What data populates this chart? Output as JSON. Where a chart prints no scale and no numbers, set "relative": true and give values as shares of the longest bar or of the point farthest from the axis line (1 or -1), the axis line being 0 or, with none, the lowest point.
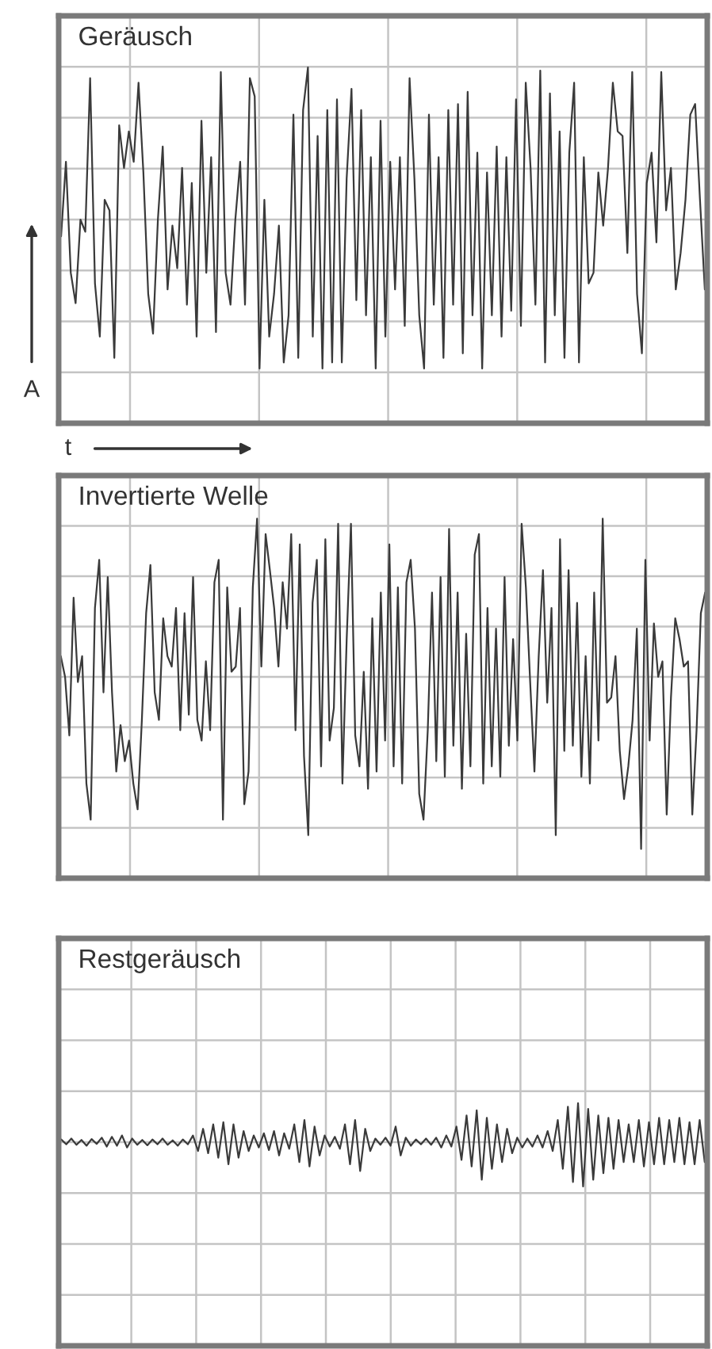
{
  "chart_data": [
    {
      "type": "line",
      "title": "Geräusch",
      "xlabel": "t",
      "ylabel": "A",
      "relative": true,
      "grid": true,
      "categories": [
        null,
        null,
        null,
        null,
        null,
        null,
        null,
        null,
        null,
        null,
        null,
        null,
        null,
        null,
        null,
        null,
        null,
        null,
        null,
        null,
        null,
        null,
        null,
        null,
        null,
        null,
        null,
        null,
        null,
        null,
        null,
        null,
        null,
        null,
        null,
        null,
        null,
        null,
        null,
        null,
        null,
        null,
        null,
        null,
        null,
        null,
        null,
        null,
        null,
        null,
        null,
        null,
        null,
        null,
        null,
        null,
        null,
        null,
        null,
        null,
        null,
        null,
        null,
        null,
        null,
        null,
        null,
        null,
        null,
        null,
        null,
        null,
        null,
        null,
        null,
        null,
        null,
        null,
        null,
        null,
        null,
        null,
        null,
        null,
        null,
        null,
        null,
        null,
        null,
        null,
        null,
        null,
        null,
        null,
        null,
        null,
        null,
        null,
        null,
        null,
        null,
        null,
        null,
        null,
        null,
        null,
        null,
        null,
        null,
        null,
        null,
        null,
        null,
        null,
        null,
        null,
        null,
        null,
        null,
        null,
        null,
        null,
        null,
        null,
        null,
        null,
        null,
        null,
        null,
        null,
        null,
        null,
        null,
        null
      ],
      "series": [
        {
          "color": "#3a3a3a",
          "values": [
            -0.11,
            0.38,
            -0.35,
            -0.55,
            0,
            -0.08,
            0.93,
            -0.42,
            -0.77,
            0.13,
            0.06,
            -0.91,
            0.62,
            0.34,
            0.58,
            0.38,
            0.9,
            0.31,
            -0.49,
            -0.75,
            0,
            0.48,
            -0.46,
            -0.04,
            -0.32,
            0.34,
            -0.56,
            0.24,
            -0.77,
            0.65,
            -0.35,
            0.41,
            -0.74,
            0.97,
            -0.35,
            -0.56,
            0,
            0.38,
            -0.56,
            0.93,
            0.81,
            -0.98,
            0.13,
            -0.77,
            -0.49,
            -0.04,
            -0.94,
            -0.63,
            0.69,
            -0.91,
            0.72,
            1.0,
            -0.77,
            0.55,
            -0.98,
            0.72,
            -0.94,
            0.79,
            -0.94,
            0.27,
            0.86,
            -0.53,
            0.72,
            -0.63,
            0.41,
            -0.98,
            0.65,
            -0.77,
            0.38,
            -0.46,
            0.41,
            -0.7,
            0.93,
            0.27,
            -0.63,
            -0.98,
            0.69,
            -0.56,
            0.41,
            -0.91,
            0.72,
            -0.56,
            0.76,
            -0.88,
            0.84,
            -0.63,
            0.44,
            -0.98,
            0.31,
            -0.63,
            0.48,
            -0.77,
            0.41,
            -0.6,
            0.79,
            -0.7,
            0.9,
            0.34,
            -0.56,
            0.98,
            -0.94,
            0.83,
            -0.63,
            0.58,
            -0.91,
            0.44,
            0.9,
            -0.94,
            0.41,
            -0.42,
            -0.35,
            0.31,
            -0.04,
            0.34,
            0.9,
            0.58,
            0.55,
            -0.22,
            0.97,
            -0.49,
            -0.88,
            0.24,
            0.44,
            -0.15,
            0.97,
            0.06,
            0.34,
            -0.46,
            -0.22,
            0.13,
            0.69,
            0.76,
            0.13,
            -0.46
          ]
        }
      ]
    },
    {
      "type": "line",
      "title": "Invertierte Welle",
      "relative": true,
      "grid": true,
      "categories": [
        null,
        null,
        null,
        null,
        null,
        null,
        null,
        null,
        null,
        null,
        null,
        null,
        null,
        null,
        null,
        null,
        null,
        null,
        null,
        null,
        null,
        null,
        null,
        null,
        null,
        null,
        null,
        null,
        null,
        null,
        null,
        null,
        null,
        null,
        null,
        null,
        null,
        null,
        null,
        null,
        null,
        null,
        null,
        null,
        null,
        null,
        null,
        null,
        null,
        null,
        null,
        null,
        null,
        null,
        null,
        null,
        null,
        null,
        null,
        null,
        null,
        null,
        null,
        null,
        null,
        null,
        null,
        null,
        null,
        null,
        null,
        null,
        null,
        null,
        null,
        null,
        null,
        null,
        null,
        null,
        null,
        null,
        null,
        null,
        null,
        null,
        null,
        null,
        null,
        null,
        null,
        null,
        null,
        null,
        null,
        null,
        null,
        null,
        null,
        null,
        null,
        null,
        null,
        null,
        null,
        null,
        null,
        null,
        null,
        null,
        null,
        null,
        null,
        null,
        null,
        null,
        null,
        null,
        null,
        null,
        null,
        null,
        null,
        null,
        null,
        null,
        null,
        null,
        null,
        null,
        null,
        null,
        null,
        null,
        null,
        null,
        null,
        null,
        null,
        null,
        null,
        null,
        null,
        null,
        null,
        null,
        null,
        null,
        null,
        null,
        null,
        null
      ],
      "series": [
        {
          "color": "#3a3a3a",
          "values": [
            0.12,
            0,
            -0.34,
            0.46,
            -0.03,
            0.12,
            -0.62,
            -0.83,
            0.4,
            0.68,
            -0.09,
            0.58,
            -0.09,
            -0.55,
            -0.28,
            -0.49,
            -0.37,
            -0.62,
            -0.77,
            -0.25,
            0.37,
            0.65,
            -0.09,
            -0.25,
            0.34,
            0.12,
            0.06,
            0.4,
            -0.31,
            0.37,
            -0.22,
            0.58,
            -0.25,
            -0.37,
            0.09,
            -0.31,
            0.55,
            0.68,
            -0.83,
            0.52,
            0.03,
            0.06,
            0.4,
            -0.74,
            -0.55,
            0.52,
            0.92,
            0.06,
            0.83,
            0.62,
            0.4,
            0.06,
            0.55,
            0.28,
            0.83,
            -0.31,
            0.77,
            -0.46,
            -0.92,
            0.43,
            0.68,
            -0.52,
            0.8,
            -0.37,
            -0.18,
            0.89,
            -0.62,
            0.22,
            0.89,
            -0.34,
            -0.52,
            0.03,
            -0.65,
            0.34,
            -0.55,
            0.49,
            -0.37,
            0.77,
            -0.52,
            0.52,
            -0.62,
            0.55,
            0.68,
            0.28,
            -0.68,
            -0.83,
            -0.31,
            0.49,
            -0.49,
            0.58,
            -0.58,
            0.86,
            -0.4,
            0.49,
            -0.65,
            0.25,
            -0.52,
            0.71,
            0.83,
            -0.62,
            0.4,
            -0.52,
            0.28,
            -0.58,
            0.58,
            -0.4,
            0.22,
            -0.37,
            0.89,
            0.52,
            -0.03,
            -0.55,
            0.12,
            0.62,
            -0.15,
            0.4,
            -0.92,
            0.8,
            -0.43,
            0.62,
            -0.4,
            0.43,
            -0.58,
            0.12,
            -0.62,
            0.49,
            -0.37,
            0.92,
            -0.15,
            -0.12,
            0.12,
            -0.43,
            -0.71,
            -0.52,
            -0.25,
            0.28,
            -1.0,
            0.68,
            -0.37,
            0.31,
            0,
            0.09,
            -0.8,
            -0.12,
            0.34,
            0.22,
            0.06,
            0.09,
            -0.8,
            -0.31,
            0.37,
            0.49
          ]
        }
      ]
    },
    {
      "type": "line",
      "title": "Restgeräusch",
      "relative": true,
      "grid": true,
      "categories": [
        null,
        null,
        null,
        null,
        null,
        null,
        null,
        null,
        null,
        null,
        null,
        null,
        null,
        null,
        null,
        null,
        null,
        null,
        null,
        null,
        null,
        null,
        null,
        null,
        null,
        null,
        null,
        null,
        null,
        null,
        null,
        null,
        null,
        null,
        null,
        null,
        null,
        null,
        null,
        null,
        null,
        null,
        null,
        null,
        null,
        null,
        null,
        null,
        null,
        null,
        null,
        null,
        null,
        null,
        null,
        null,
        null,
        null,
        null,
        null,
        null,
        null,
        null,
        null,
        null,
        null,
        null,
        null,
        null,
        null,
        null,
        null,
        null,
        null,
        null,
        null,
        null,
        null,
        null,
        null,
        null,
        null,
        null,
        null,
        null,
        null,
        null,
        null,
        null,
        null,
        null,
        null,
        null,
        null,
        null,
        null,
        null,
        null,
        null,
        null,
        null,
        null,
        null,
        null,
        null,
        null,
        null,
        null,
        null,
        null,
        null,
        null,
        null,
        null,
        null,
        null,
        null,
        null,
        null,
        null,
        null,
        null,
        null,
        null,
        null,
        null,
        null,
        null
      ],
      "series": [
        {
          "color": "#3a3a3a",
          "values": [
            0.06,
            -0.05,
            0.08,
            -0.06,
            0.05,
            -0.08,
            0.07,
            -0.04,
            0.1,
            -0.1,
            0.12,
            -0.08,
            0.15,
            -0.12,
            0.08,
            -0.06,
            0.05,
            -0.07,
            0.06,
            -0.05,
            0.08,
            -0.06,
            0.04,
            -0.08,
            0.06,
            -0.05,
            0.15,
            -0.2,
            0.3,
            -0.25,
            0.4,
            -0.35,
            0.45,
            -0.5,
            0.4,
            -0.35,
            0.25,
            -0.2,
            0.15,
            -0.12,
            0.2,
            -0.18,
            0.25,
            -0.3,
            0.2,
            -0.15,
            0.4,
            -0.45,
            0.5,
            -0.55,
            0.35,
            -0.3,
            0.15,
            -0.1,
            0.12,
            -0.15,
            0.4,
            -0.5,
            0.5,
            -0.65,
            0.3,
            -0.2,
            0.08,
            -0.06,
            0.1,
            -0.08,
            0.35,
            -0.3,
            0.1,
            -0.08,
            0.06,
            -0.05,
            0.08,
            -0.06,
            0.1,
            -0.12,
            0.15,
            -0.1,
            0.35,
            -0.4,
            0.6,
            -0.55,
            0.72,
            -0.85,
            0.55,
            -0.6,
            0.4,
            -0.45,
            0.3,
            -0.25,
            0.1,
            -0.12,
            0.08,
            -0.1,
            0.15,
            -0.12,
            0.25,
            -0.2,
            0.5,
            -0.6,
            0.8,
            -0.9,
            0.88,
            -1.0,
            0.75,
            -0.85,
            0.6,
            -0.7,
            0.55,
            -0.6,
            0.5,
            -0.45,
            0.4,
            -0.45,
            0.5,
            -0.55,
            0.45,
            -0.5,
            0.55,
            -0.5,
            0.5,
            -0.45,
            0.55,
            -0.5,
            0.45,
            -0.5,
            0.5,
            -0.45
          ]
        }
      ]
    }
  ]
}
